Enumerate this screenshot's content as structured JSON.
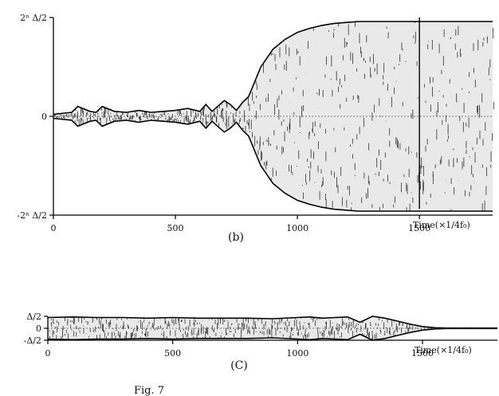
{
  "chart_data": [
    {
      "type": "area",
      "panel_label": "(b)",
      "xlabel": "Time(×1/4f₀)",
      "ylabel": "",
      "x_ticks": [
        "0",
        "500",
        "1000",
        "1500"
      ],
      "y_ticks": [
        "2ⁿ Δ/2",
        "0",
        "-2ⁿ Δ/2"
      ],
      "xlim": [
        0,
        1800
      ],
      "ylim": [
        -1,
        1
      ],
      "vertical_marker_x": 1500,
      "series": [
        {
          "x": [
            0,
            75,
            100,
            150,
            175,
            200,
            250,
            300,
            350,
            400,
            450,
            500,
            550,
            600,
            625,
            650,
            700,
            725,
            750,
            775,
            800,
            850,
            900,
            950,
            1000,
            1050,
            1100,
            1150,
            1200,
            1250,
            1300,
            1350,
            1400,
            1450,
            1500,
            1550,
            1600,
            1650,
            1700,
            1750,
            1800
          ],
          "values": [
            0.02,
            0.04,
            0.1,
            0.05,
            0.04,
            0.1,
            0.05,
            0.04,
            0.06,
            0.04,
            0.05,
            0.06,
            0.08,
            0.05,
            0.12,
            0.05,
            0.16,
            0.12,
            0.06,
            0.14,
            0.2,
            0.5,
            0.68,
            0.78,
            0.85,
            0.89,
            0.92,
            0.94,
            0.95,
            0.96,
            0.96,
            0.96,
            0.96,
            0.96,
            0.96,
            0.96,
            0.96,
            0.96,
            0.96,
            0.96,
            0.96
          ]
        }
      ]
    },
    {
      "type": "area",
      "panel_label": "(C)",
      "xlabel": "Time(×1/4f₀)",
      "ylabel": "",
      "x_ticks": [
        "0",
        "500",
        "1000",
        "1500"
      ],
      "y_ticks": [
        "Δ/2",
        "0",
        "-Δ/2"
      ],
      "xlim": [
        0,
        1800
      ],
      "ylim": [
        -1,
        1
      ],
      "series": [
        {
          "x": [
            0,
            100,
            200,
            300,
            400,
            500,
            600,
            700,
            800,
            900,
            1000,
            1050,
            1100,
            1150,
            1200,
            1250,
            1300,
            1350,
            1400,
            1450,
            1500,
            1550,
            1600,
            1700,
            1800
          ],
          "values": [
            0.9,
            0.95,
            0.9,
            0.9,
            0.85,
            0.9,
            0.85,
            0.85,
            0.85,
            0.8,
            0.9,
            0.95,
            0.85,
            0.9,
            0.95,
            0.5,
            1.0,
            0.85,
            0.6,
            0.35,
            0.15,
            0.05,
            0.02,
            0.02,
            0.02
          ]
        }
      ]
    }
  ],
  "footer": "Fig. 7"
}
